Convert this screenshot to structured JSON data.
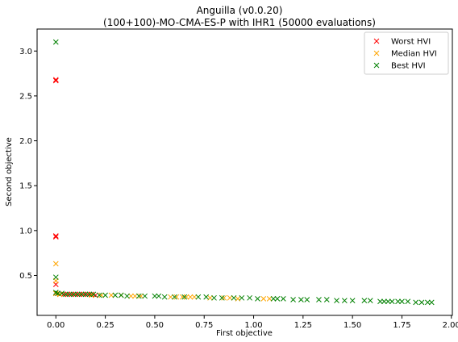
{
  "chart_data": {
    "type": "scatter",
    "title": "Anguilla (v0.0.20)",
    "subtitle": "(100+100)-MO-CMA-ES-P with IHR1 (50000 evaluations)",
    "xlabel": "First objective",
    "ylabel": "Second objective",
    "xlim": [
      -0.095,
      2.005
    ],
    "ylim": [
      0.055,
      3.245
    ],
    "xticks": [
      "0.00",
      "0.25",
      "0.50",
      "0.75",
      "1.00",
      "1.25",
      "1.50",
      "1.75",
      "2.00"
    ],
    "yticks": [
      "0.5",
      "1.0",
      "1.5",
      "2.0",
      "2.5",
      "3.0"
    ],
    "grid": false,
    "legend_position": "top-right",
    "marker": "x",
    "series": [
      {
        "name": "Worst HVI",
        "color": "#ff0000",
        "points": [
          [
            0.0,
            2.68
          ],
          [
            0.0,
            2.67
          ],
          [
            0.0,
            0.94
          ],
          [
            0.0,
            0.93
          ],
          [
            0.0,
            0.4
          ],
          [
            0.0,
            0.3
          ],
          [
            0.01,
            0.3
          ],
          [
            0.02,
            0.29
          ],
          [
            0.04,
            0.29
          ],
          [
            0.06,
            0.29
          ],
          [
            0.08,
            0.29
          ],
          [
            0.1,
            0.29
          ],
          [
            0.12,
            0.29
          ],
          [
            0.14,
            0.29
          ],
          [
            0.16,
            0.29
          ],
          [
            0.18,
            0.29
          ],
          [
            0.2,
            0.28
          ]
        ]
      },
      {
        "name": "Median HVI",
        "color": "#ffa500",
        "points": [
          [
            0.0,
            0.63
          ],
          [
            0.0,
            0.44
          ],
          [
            0.0,
            0.3
          ],
          [
            0.02,
            0.29
          ],
          [
            0.05,
            0.29
          ],
          [
            0.09,
            0.29
          ],
          [
            0.13,
            0.29
          ],
          [
            0.18,
            0.28
          ],
          [
            0.23,
            0.28
          ],
          [
            0.28,
            0.28
          ],
          [
            0.33,
            0.28
          ],
          [
            0.38,
            0.27
          ],
          [
            0.4,
            0.27
          ],
          [
            0.43,
            0.27
          ],
          [
            0.58,
            0.26
          ],
          [
            0.61,
            0.26
          ],
          [
            0.64,
            0.26
          ],
          [
            0.66,
            0.26
          ],
          [
            0.68,
            0.26
          ],
          [
            0.7,
            0.26
          ],
          [
            0.78,
            0.25
          ],
          [
            0.85,
            0.25
          ],
          [
            0.88,
            0.25
          ],
          [
            0.92,
            0.24
          ],
          [
            1.05,
            0.24
          ],
          [
            1.08,
            0.24
          ]
        ]
      },
      {
        "name": "Best HVI",
        "color": "#008000",
        "points": [
          [
            0.0,
            3.1
          ],
          [
            0.0,
            0.48
          ],
          [
            0.0,
            0.31
          ],
          [
            0.01,
            0.3
          ],
          [
            0.03,
            0.3
          ],
          [
            0.05,
            0.29
          ],
          [
            0.07,
            0.29
          ],
          [
            0.09,
            0.29
          ],
          [
            0.11,
            0.29
          ],
          [
            0.13,
            0.29
          ],
          [
            0.15,
            0.29
          ],
          [
            0.17,
            0.29
          ],
          [
            0.19,
            0.29
          ],
          [
            0.22,
            0.28
          ],
          [
            0.25,
            0.28
          ],
          [
            0.3,
            0.28
          ],
          [
            0.33,
            0.28
          ],
          [
            0.36,
            0.27
          ],
          [
            0.42,
            0.27
          ],
          [
            0.45,
            0.27
          ],
          [
            0.5,
            0.27
          ],
          [
            0.52,
            0.27
          ],
          [
            0.55,
            0.26
          ],
          [
            0.6,
            0.26
          ],
          [
            0.65,
            0.26
          ],
          [
            0.72,
            0.26
          ],
          [
            0.76,
            0.26
          ],
          [
            0.8,
            0.25
          ],
          [
            0.84,
            0.25
          ],
          [
            0.9,
            0.25
          ],
          [
            0.94,
            0.25
          ],
          [
            0.98,
            0.25
          ],
          [
            1.02,
            0.24
          ],
          [
            1.1,
            0.24
          ],
          [
            1.12,
            0.24
          ],
          [
            1.15,
            0.24
          ],
          [
            1.2,
            0.23
          ],
          [
            1.24,
            0.23
          ],
          [
            1.27,
            0.23
          ],
          [
            1.33,
            0.23
          ],
          [
            1.37,
            0.23
          ],
          [
            1.42,
            0.22
          ],
          [
            1.46,
            0.22
          ],
          [
            1.5,
            0.22
          ],
          [
            1.56,
            0.22
          ],
          [
            1.59,
            0.22
          ],
          [
            1.64,
            0.21
          ],
          [
            1.66,
            0.21
          ],
          [
            1.68,
            0.21
          ],
          [
            1.7,
            0.21
          ],
          [
            1.73,
            0.21
          ],
          [
            1.75,
            0.21
          ],
          [
            1.78,
            0.21
          ],
          [
            1.82,
            0.2
          ],
          [
            1.85,
            0.2
          ],
          [
            1.88,
            0.2
          ],
          [
            1.9,
            0.2
          ]
        ]
      }
    ]
  }
}
